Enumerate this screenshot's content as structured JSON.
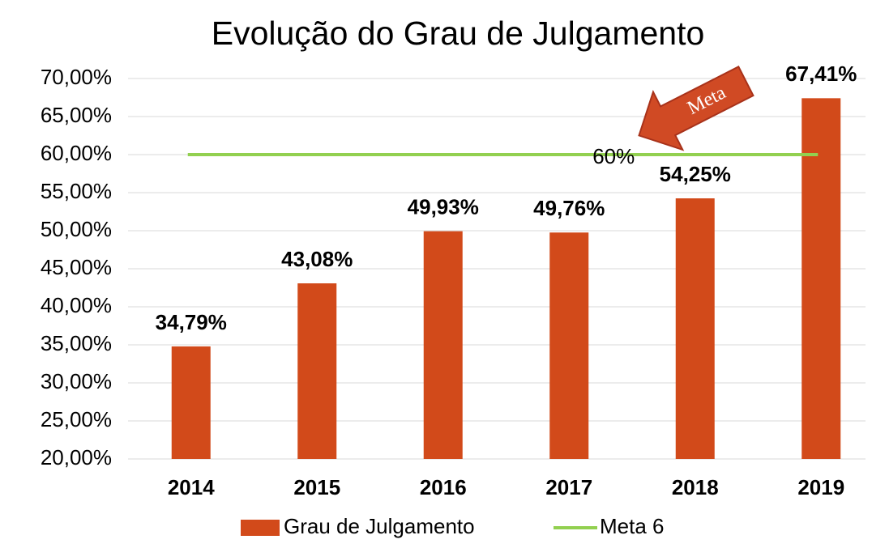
{
  "chart_data": {
    "type": "bar",
    "title": "Evolução do Grau de Julgamento",
    "categories": [
      "2014",
      "2015",
      "2016",
      "2017",
      "2018",
      "2019"
    ],
    "series": [
      {
        "name": "Grau de Julgamento",
        "type": "bar",
        "color": "#d24a1a",
        "values": [
          34.79,
          43.08,
          49.93,
          49.76,
          54.25,
          67.41
        ],
        "value_labels": [
          "34,79%",
          "43,08%",
          "49,93%",
          "49,76%",
          "54,25%",
          "67,41%"
        ]
      },
      {
        "name": "Meta 6",
        "type": "line",
        "color": "#92d050",
        "values": [
          60,
          60,
          60,
          60,
          60,
          60
        ],
        "value_labels": [
          null,
          null,
          null,
          "60%",
          null,
          null
        ]
      }
    ],
    "annotations": [
      "Meta"
    ],
    "ylim": [
      20,
      70
    ],
    "yticks": [
      {
        "value": 20,
        "label": "20,00%"
      },
      {
        "value": 25,
        "label": "25,00%"
      },
      {
        "value": 30,
        "label": "30,00%"
      },
      {
        "value": 35,
        "label": "35,00%"
      },
      {
        "value": 40,
        "label": "40,00%"
      },
      {
        "value": 45,
        "label": "45,00%"
      },
      {
        "value": 50,
        "label": "50,00%"
      },
      {
        "value": 55,
        "label": "55,00%"
      },
      {
        "value": 60,
        "label": "60,00%"
      },
      {
        "value": 65,
        "label": "65,00%"
      },
      {
        "value": 70,
        "label": "70,00%"
      }
    ],
    "grid": true,
    "legend": "bottom"
  }
}
